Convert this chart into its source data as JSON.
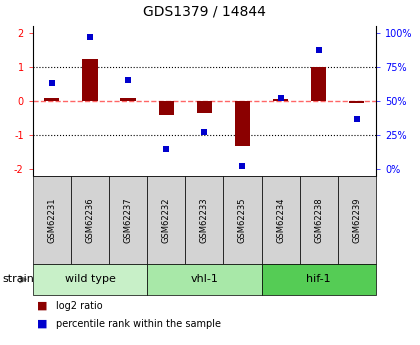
{
  "title": "GDS1379 / 14844",
  "samples": [
    "GSM62231",
    "GSM62236",
    "GSM62237",
    "GSM62232",
    "GSM62233",
    "GSM62235",
    "GSM62234",
    "GSM62238",
    "GSM62239"
  ],
  "log2_ratio": [
    0.08,
    1.22,
    0.1,
    -0.4,
    -0.35,
    -1.32,
    0.05,
    1.0,
    -0.05
  ],
  "percentile": [
    63,
    97,
    65,
    15,
    27,
    2,
    52,
    87,
    37
  ],
  "groups": [
    {
      "label": "wild type",
      "start": 0,
      "end": 3,
      "color": "#c8f0c8"
    },
    {
      "label": "vhl-1",
      "start": 3,
      "end": 6,
      "color": "#a8e8a8"
    },
    {
      "label": "hif-1",
      "start": 6,
      "end": 9,
      "color": "#55cc55"
    }
  ],
  "ylim": [
    -2.2,
    2.2
  ],
  "yticks_left": [
    -2,
    -1,
    0,
    1,
    2
  ],
  "yticks_right": [
    0,
    25,
    50,
    75,
    100
  ],
  "bar_color": "#8b0000",
  "dot_color": "#0000cd",
  "zero_line_color": "#ff6666",
  "grid_color": "#000000",
  "sample_box_color": "#d3d3d3",
  "strain_label": "strain",
  "legend_bar_label": "log2 ratio",
  "legend_dot_label": "percentile rank within the sample",
  "title_fontsize": 10,
  "tick_fontsize": 7,
  "sample_fontsize": 6,
  "group_fontsize": 8,
  "legend_fontsize": 7
}
